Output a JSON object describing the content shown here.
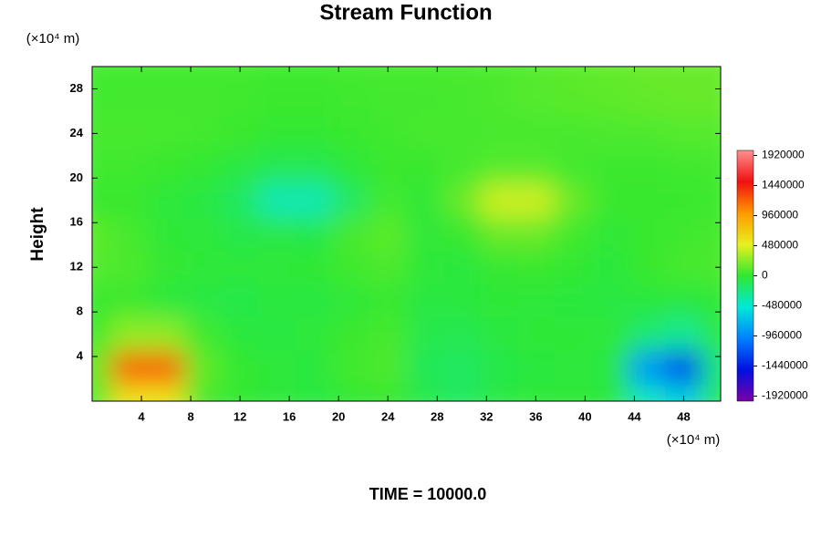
{
  "chart_data": {
    "type": "contour",
    "title": "Stream Function",
    "ylabel": "Height",
    "y_unit": "(×10⁴ m)",
    "x_unit": "(×10⁴ m)",
    "footer": "TIME = 10000.0",
    "x": [
      0,
      3,
      6,
      9,
      12,
      15,
      18,
      21,
      24,
      27,
      30,
      33,
      36,
      39,
      42,
      45,
      48,
      51
    ],
    "y": [
      0,
      3,
      6,
      9,
      12,
      15,
      18,
      21,
      24,
      27,
      30
    ],
    "z": [
      [
        60000,
        560000,
        560000,
        60000,
        0,
        -30000,
        -50000,
        0,
        30000,
        -80000,
        -150000,
        -60000,
        -30000,
        -20000,
        -40000,
        -420000,
        -600000,
        -90000
      ],
      [
        130000,
        1200000,
        1200000,
        130000,
        0,
        -30000,
        -50000,
        50000,
        80000,
        -120000,
        -150000,
        -80000,
        -40000,
        -30000,
        -60000,
        -880000,
        -1290000,
        -200000
      ],
      [
        40000,
        260000,
        260000,
        40000,
        -40000,
        -60000,
        -20000,
        30000,
        60000,
        -80000,
        -100000,
        -50000,
        -20000,
        -20000,
        -30000,
        -200000,
        -300000,
        -60000
      ],
      [
        20000,
        30000,
        -40000,
        -60000,
        -80000,
        -40000,
        -60000,
        -30000,
        20000,
        -60000,
        -40000,
        -20000,
        -30000,
        -40000,
        -60000,
        -40000,
        -50000,
        -20000
      ],
      [
        100000,
        80000,
        10000,
        -20000,
        -30000,
        -20000,
        -10000,
        40000,
        80000,
        -20000,
        -40000,
        10000,
        20000,
        0,
        -40000,
        20000,
        60000,
        80000
      ],
      [
        120000,
        60000,
        -20000,
        -30000,
        -80000,
        -60000,
        -80000,
        60000,
        120000,
        -30000,
        20000,
        150000,
        150000,
        40000,
        -20000,
        20000,
        40000,
        60000
      ],
      [
        20000,
        20000,
        -30000,
        -60000,
        -150000,
        -400000,
        -400000,
        -150000,
        50000,
        -20000,
        150000,
        430000,
        430000,
        150000,
        20000,
        20000,
        20000,
        40000
      ],
      [
        40000,
        40000,
        20000,
        0,
        -60000,
        -100000,
        -100000,
        -30000,
        20000,
        20000,
        60000,
        100000,
        100000,
        50000,
        30000,
        30000,
        40000,
        50000
      ],
      [
        60000,
        60000,
        60000,
        50000,
        30000,
        0,
        0,
        20000,
        40000,
        60000,
        60000,
        60000,
        60000,
        60000,
        80000,
        80000,
        100000,
        100000
      ],
      [
        50000,
        50000,
        50000,
        50000,
        40000,
        30000,
        30000,
        40000,
        50000,
        50000,
        60000,
        80000,
        100000,
        110000,
        120000,
        140000,
        150000,
        150000
      ],
      [
        50000,
        50000,
        50000,
        50000,
        50000,
        40000,
        40000,
        50000,
        60000,
        60000,
        70000,
        80000,
        100000,
        120000,
        140000,
        150000,
        150000,
        150000
      ]
    ],
    "xlim": [
      0,
      51
    ],
    "ylim": [
      0,
      30
    ],
    "xticks": [
      4,
      8,
      12,
      16,
      20,
      24,
      28,
      32,
      36,
      40,
      44,
      48
    ],
    "yticks": [
      4,
      8,
      12,
      16,
      20,
      24,
      28
    ],
    "clim": [
      -2000000,
      2000000
    ],
    "cticks": [
      1920000,
      1440000,
      960000,
      480000,
      0,
      -480000,
      -960000,
      -1440000,
      -1920000
    ],
    "colormap": [
      "#7a00a8",
      "#0010e0",
      "#0080ff",
      "#00e8d8",
      "#30e830",
      "#e8f020",
      "#ff9900",
      "#f01010",
      "#ff9090"
    ]
  }
}
